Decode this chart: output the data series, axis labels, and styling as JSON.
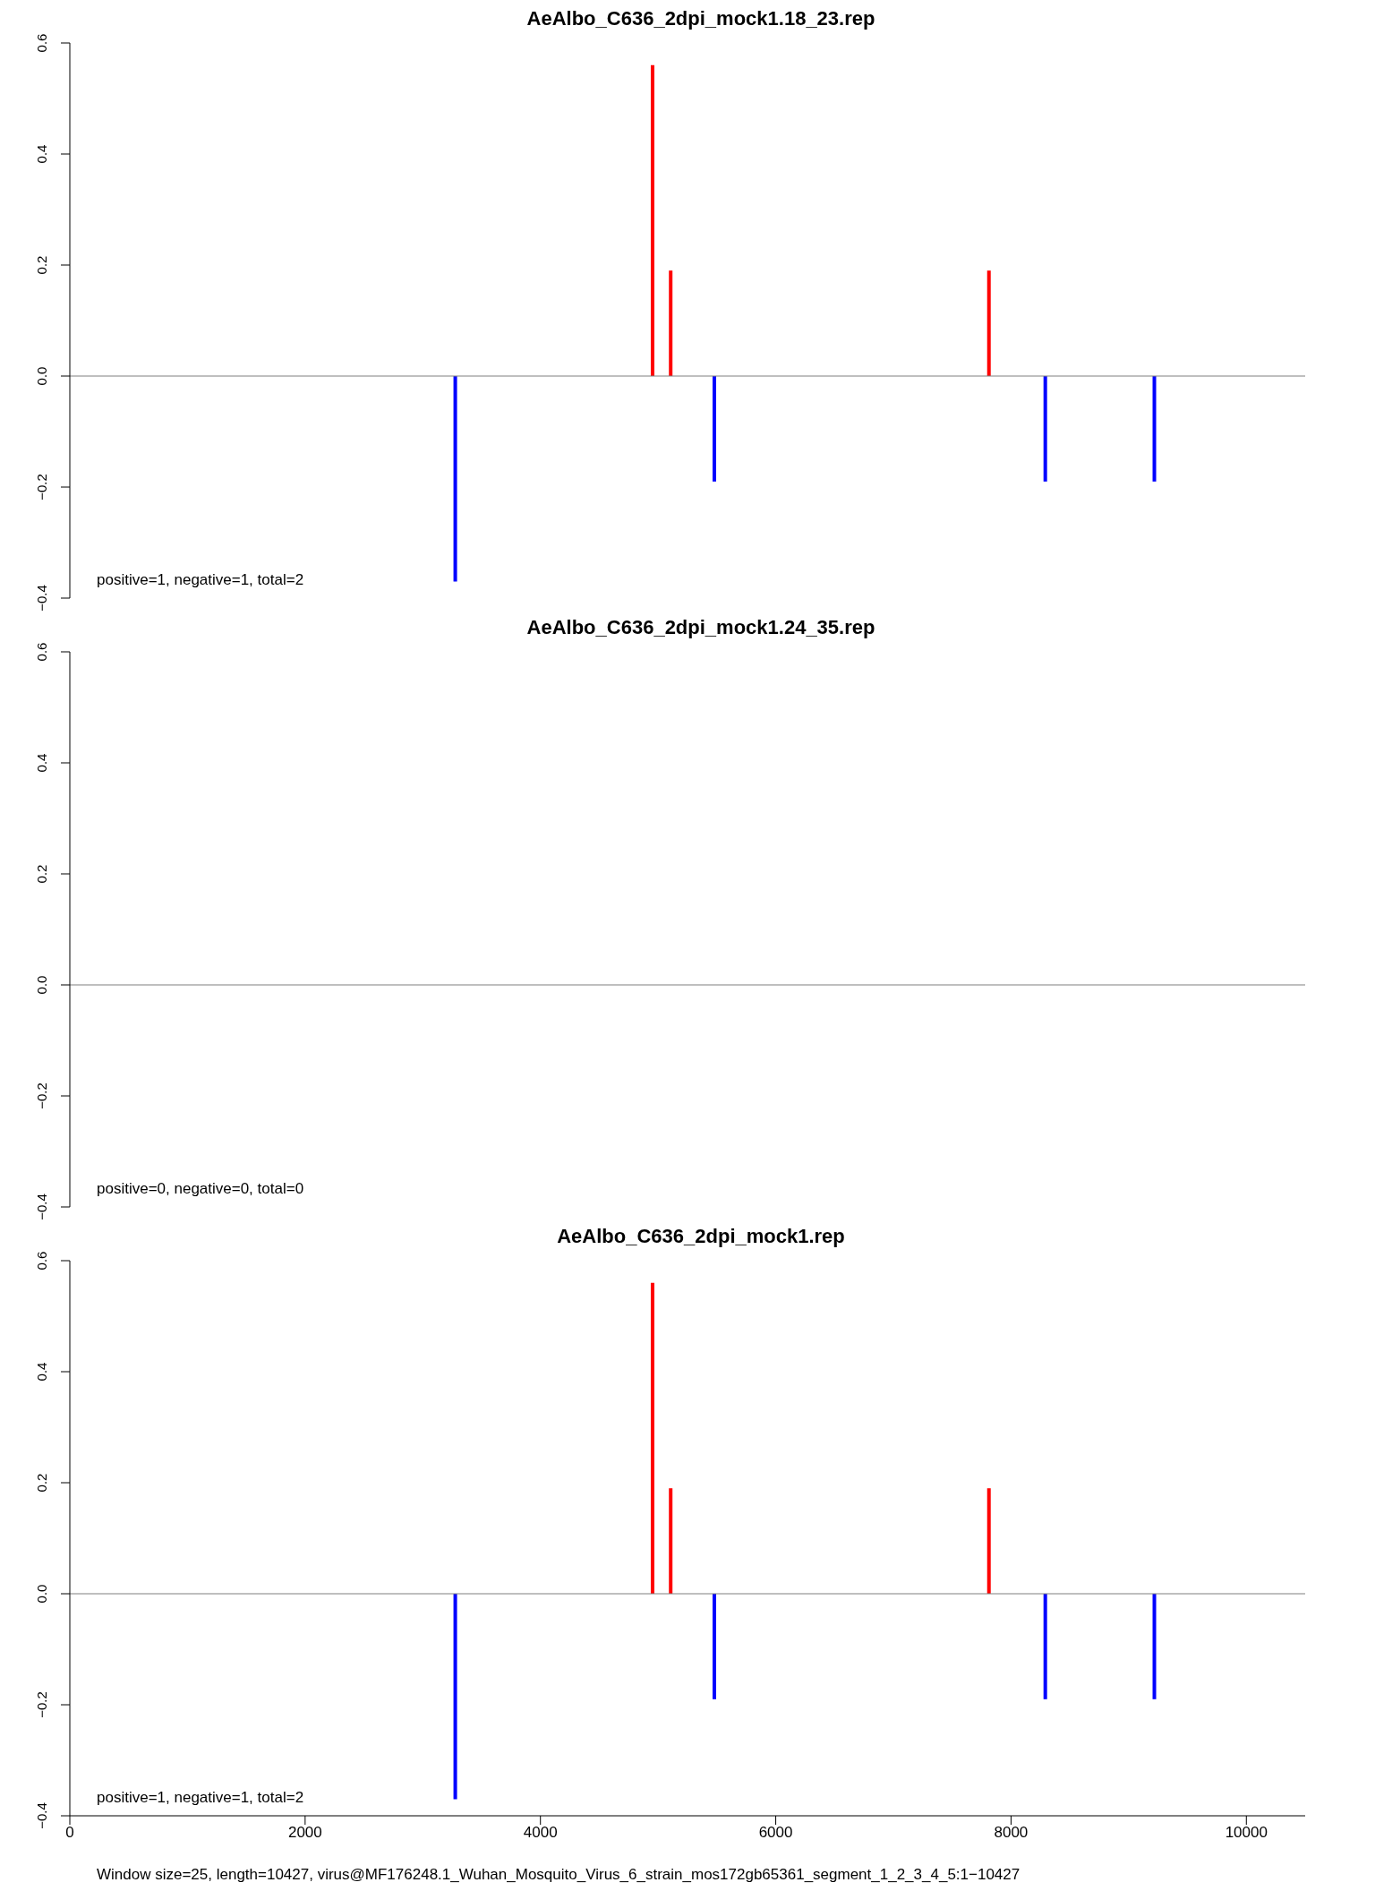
{
  "chart_data": [
    {
      "type": "bar",
      "title": "AeAlbo_C636_2dpi_mock1.18_23.rep",
      "xlim": [
        0,
        10500
      ],
      "xticks": [
        0,
        2000,
        4000,
        6000,
        8000,
        10000
      ],
      "ylim": [
        -0.4,
        0.6
      ],
      "yticks": [
        {
          "value": -0.4,
          "label": "−0.4"
        },
        {
          "value": -0.2,
          "label": "−0.2"
        },
        {
          "value": 0,
          "label": "0.0"
        },
        {
          "value": 0.2,
          "label": "0.2"
        },
        {
          "value": 0.4,
          "label": "0.4"
        },
        {
          "value": 0.6,
          "label": "0.6"
        }
      ],
      "tick_labels": "y",
      "ref_lines": [
        {
          "axis": "y",
          "value": 0,
          "color": "#808080"
        }
      ],
      "annotations": [
        "positive=1, negative=1, total=2"
      ],
      "series": [
        {
          "color": "#ff0000",
          "x": [
            4954,
            5108,
            7813
          ],
          "values": [
            0.56,
            0.19,
            0.19
          ]
        },
        {
          "color": "#0000ff",
          "x": [
            3277,
            5479,
            8292,
            9219
          ],
          "values": [
            -0.37,
            -0.19,
            -0.19,
            -0.19
          ]
        }
      ]
    },
    {
      "type": "bar",
      "title": "AeAlbo_C636_2dpi_mock1.24_35.rep",
      "xlim": [
        0,
        10500
      ],
      "xticks": [
        0,
        2000,
        4000,
        6000,
        8000,
        10000
      ],
      "ylim": [
        -0.4,
        0.6
      ],
      "yticks": [
        {
          "value": -0.4,
          "label": "−0.4"
        },
        {
          "value": -0.2,
          "label": "−0.2"
        },
        {
          "value": 0,
          "label": "0.0"
        },
        {
          "value": 0.2,
          "label": "0.2"
        },
        {
          "value": 0.4,
          "label": "0.4"
        },
        {
          "value": 0.6,
          "label": "0.6"
        }
      ],
      "tick_labels": "y",
      "ref_lines": [
        {
          "axis": "y",
          "value": 0,
          "color": "#808080"
        }
      ],
      "annotations": [
        "positive=0, negative=0, total=0"
      ]
    },
    {
      "type": "bar",
      "title": "AeAlbo_C636_2dpi_mock1.rep",
      "xlim": [
        0,
        10500
      ],
      "xticks": [
        0,
        2000,
        4000,
        6000,
        8000,
        10000
      ],
      "ylim": [
        -0.4,
        0.6
      ],
      "yticks": [
        {
          "value": -0.4,
          "label": "−0.4"
        },
        {
          "value": -0.2,
          "label": "−0.2"
        },
        {
          "value": 0,
          "label": "0.0"
        },
        {
          "value": 0.2,
          "label": "0.2"
        },
        {
          "value": 0.4,
          "label": "0.4"
        },
        {
          "value": 0.6,
          "label": "0.6"
        }
      ],
      "ref_lines": [
        {
          "axis": "y",
          "value": 0,
          "color": "#808080"
        }
      ],
      "annotations": [
        "positive=1, negative=1, total=2",
        "Window size=25, length=10427, virus@MF176248.1_Wuhan_Mosquito_Virus_6_strain_mos172gb65361_segment_1_2_3_4_5:1−10427"
      ],
      "series": [
        {
          "color": "#ff0000",
          "x": [
            4954,
            5108,
            7813
          ],
          "values": [
            0.56,
            0.19,
            0.19
          ]
        },
        {
          "color": "#0000ff",
          "x": [
            3277,
            5479,
            8292,
            9219
          ],
          "values": [
            -0.37,
            -0.19,
            -0.19,
            -0.19
          ]
        }
      ]
    }
  ]
}
